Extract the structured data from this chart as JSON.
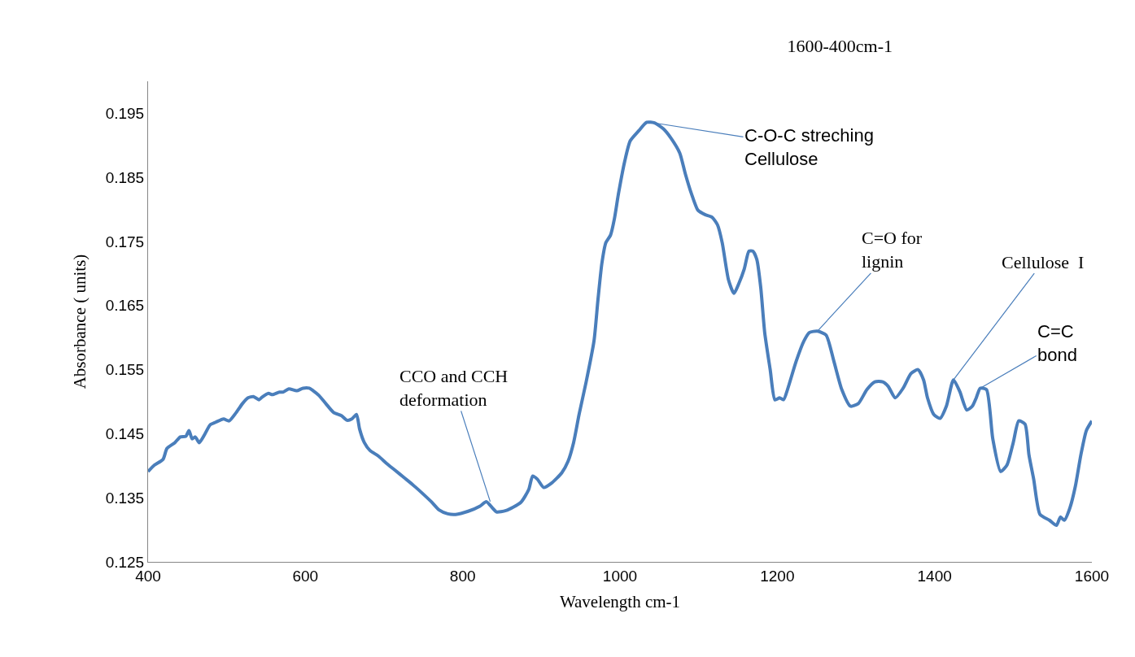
{
  "chart_data": {
    "type": "line",
    "title": "1600-400cm-1",
    "xlabel": "Wavelength cm-1",
    "ylabel": "Absorbance ( units)",
    "xlim": [
      400,
      1600
    ],
    "xticks": [
      400,
      600,
      800,
      1000,
      1200,
      1400,
      1600
    ],
    "ylim": [
      0.125,
      0.2
    ],
    "yticks": [
      0.125,
      0.135,
      0.145,
      0.155,
      0.165,
      0.175,
      0.185,
      0.195
    ],
    "marker": "none",
    "line_style": "solid",
    "x": [
      400,
      408,
      419,
      424,
      434,
      441,
      448,
      452,
      456,
      460,
      465,
      472,
      479,
      486,
      496,
      503,
      512,
      520,
      527,
      534,
      541,
      545,
      553,
      558,
      567,
      572,
      579,
      589,
      597,
      605,
      610,
      617,
      626,
      636,
      646,
      653,
      659,
      665,
      669,
      675,
      682,
      693,
      703,
      713,
      726,
      736,
      747,
      760,
      770,
      781,
      791,
      807,
      822,
      830,
      838,
      843,
      855,
      874,
      884,
      889,
      895,
      903,
      913,
      926,
      934,
      941,
      948,
      957,
      967,
      972,
      977,
      982,
      988,
      993,
      998,
      1006,
      1013,
      1024,
      1034,
      1044,
      1055,
      1065,
      1076,
      1083,
      1091,
      1099,
      1108,
      1117,
      1124,
      1130,
      1138,
      1145,
      1151,
      1158,
      1164,
      1169,
      1174,
      1179,
      1184,
      1191,
      1197,
      1203,
      1208,
      1213,
      1224,
      1234,
      1241,
      1251,
      1262,
      1272,
      1282,
      1293,
      1303,
      1314,
      1324,
      1334,
      1341,
      1350,
      1360,
      1370,
      1379,
      1386,
      1391,
      1399,
      1407,
      1415,
      1424,
      1432,
      1441,
      1448,
      1453,
      1458,
      1466,
      1474,
      1484,
      1492,
      1500,
      1507,
      1515,
      1520,
      1526,
      1534,
      1546,
      1555,
      1560,
      1565,
      1572,
      1579,
      1586,
      1593,
      1600
    ],
    "series": [
      {
        "color": "#4a7ebb",
        "values": [
          0.1391,
          0.1401,
          0.141,
          0.1427,
          0.1436,
          0.1445,
          0.1446,
          0.1455,
          0.1442,
          0.1445,
          0.1436,
          0.1449,
          0.1464,
          0.1468,
          0.1473,
          0.147,
          0.1483,
          0.1497,
          0.1506,
          0.1508,
          0.1503,
          0.1507,
          0.1513,
          0.1511,
          0.1515,
          0.1515,
          0.152,
          0.1517,
          0.1521,
          0.1521,
          0.1517,
          0.151,
          0.1497,
          0.1483,
          0.1478,
          0.1471,
          0.1473,
          0.148,
          0.1457,
          0.1436,
          0.1424,
          0.1415,
          0.1404,
          0.1394,
          0.1381,
          0.1371,
          0.1359,
          0.1344,
          0.1331,
          0.1325,
          0.1324,
          0.1329,
          0.1337,
          0.1344,
          0.1334,
          0.1328,
          0.133,
          0.1343,
          0.1363,
          0.1384,
          0.1379,
          0.1366,
          0.1373,
          0.1389,
          0.1407,
          0.1436,
          0.148,
          0.1531,
          0.1595,
          0.1659,
          0.1716,
          0.1748,
          0.176,
          0.1786,
          0.1824,
          0.1875,
          0.1907,
          0.1923,
          0.1936,
          0.1935,
          0.1926,
          0.1911,
          0.1888,
          0.1856,
          0.1824,
          0.1799,
          0.1792,
          0.1788,
          0.1776,
          0.1748,
          0.169,
          0.1669,
          0.1684,
          0.1707,
          0.1735,
          0.1735,
          0.1722,
          0.1678,
          0.1608,
          0.155,
          0.1503,
          0.1506,
          0.1503,
          0.1519,
          0.1563,
          0.1595,
          0.1608,
          0.161,
          0.1604,
          0.1563,
          0.1519,
          0.1493,
          0.1497,
          0.1519,
          0.1531,
          0.1531,
          0.1524,
          0.1506,
          0.1521,
          0.1544,
          0.155,
          0.1534,
          0.1506,
          0.148,
          0.1474,
          0.1493,
          0.1534,
          0.1516,
          0.1487,
          0.1493,
          0.1506,
          0.1521,
          0.1519,
          0.1442,
          0.1391,
          0.1401,
          0.1436,
          0.147,
          0.1465,
          0.1417,
          0.1379,
          0.1324,
          0.1315,
          0.1307,
          0.132,
          0.1315,
          0.1334,
          0.1368,
          0.1417,
          0.1455,
          0.147
        ]
      }
    ],
    "annotations": [
      {
        "text": "CCO and CCH\ndeformation",
        "x": 835,
        "y": 0.1344
      },
      {
        "text": "C-O-C streching\nCellulose",
        "x": 1044,
        "y": 0.1935
      },
      {
        "text": "C=O for\nlignin",
        "x": 1251,
        "y": 0.161
      },
      {
        "text": "Cellulose  I",
        "x": 1424,
        "y": 0.1534
      },
      {
        "text": "C=C\nbond",
        "x": 1458,
        "y": 0.1521
      }
    ]
  }
}
